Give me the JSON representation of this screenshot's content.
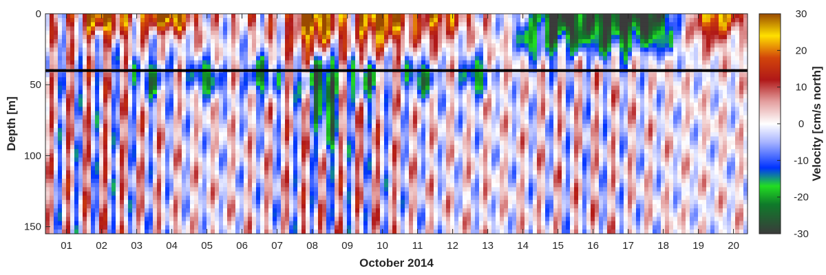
{
  "chart_data": {
    "type": "heatmap",
    "title": "",
    "xlabel": "October 2014",
    "ylabel": "Depth [m]",
    "x_ticks": [
      "01",
      "02",
      "03",
      "04",
      "05",
      "06",
      "07",
      "08",
      "09",
      "10",
      "11",
      "12",
      "13",
      "14",
      "15",
      "16",
      "17",
      "18",
      "19",
      "20"
    ],
    "x_range_days": [
      0.4,
      20.4
    ],
    "y_ticks": [
      0,
      50,
      100,
      150
    ],
    "y_range": [
      0,
      155
    ],
    "y_reversed": true,
    "grid": false,
    "colorbar": {
      "label": "Velocity [cm/s north]",
      "range": [
        -30,
        30
      ],
      "ticks": [
        30,
        20,
        10,
        0,
        -10,
        -20,
        -30
      ],
      "colors": [
        {
          "value": -30,
          "color": "#3b3b3b"
        },
        {
          "value": -22,
          "color": "#0f7a2a"
        },
        {
          "value": -17,
          "color": "#22dd22"
        },
        {
          "value": -12,
          "color": "#0033ff"
        },
        {
          "value": -5,
          "color": "#a8b4ff"
        },
        {
          "value": 0,
          "color": "#ffffff"
        },
        {
          "value": 6,
          "color": "#e4a0a0"
        },
        {
          "value": 12,
          "color": "#b01818"
        },
        {
          "value": 18,
          "color": "#d2450a"
        },
        {
          "value": 24,
          "color": "#ffe000"
        },
        {
          "value": 30,
          "color": "#9a4a00"
        }
      ]
    },
    "reference_line": {
      "depth": 40,
      "color": "#000000"
    },
    "field": {
      "description_of_pattern": "Alternating north/south tidal bands (~semi-diurnal period) below ~40 m; strong positive velocities near surface on days 3-4, 8, 9-10 and 19-20; negative (green/dark) near-surface flow days 14-18.",
      "tidal_amplitude_deep": 12,
      "tidal_period_days": 0.517,
      "surface_events": [
        {
          "day": 2.0,
          "depth_max": 15,
          "peak": 24
        },
        {
          "day": 3.8,
          "depth_max": 12,
          "peak": 30
        },
        {
          "day": 8.1,
          "depth_max": 30,
          "peak": 30
        },
        {
          "day": 9.9,
          "depth_max": 25,
          "peak": 28
        },
        {
          "day": 11.5,
          "depth_max": 20,
          "peak": 18
        },
        {
          "day": 19.5,
          "depth_max": 18,
          "peak": 26
        }
      ],
      "negative_surface_events": [
        {
          "day": 15.0,
          "depth_max": 20,
          "peak": -30
        },
        {
          "day": 16.5,
          "depth_max": 20,
          "peak": -28
        },
        {
          "day": 17.7,
          "depth_max": 18,
          "peak": -25
        }
      ],
      "green_layer": {
        "depth_center": 45,
        "days": [
          2.5,
          13.0
        ],
        "peak": -18
      }
    }
  }
}
